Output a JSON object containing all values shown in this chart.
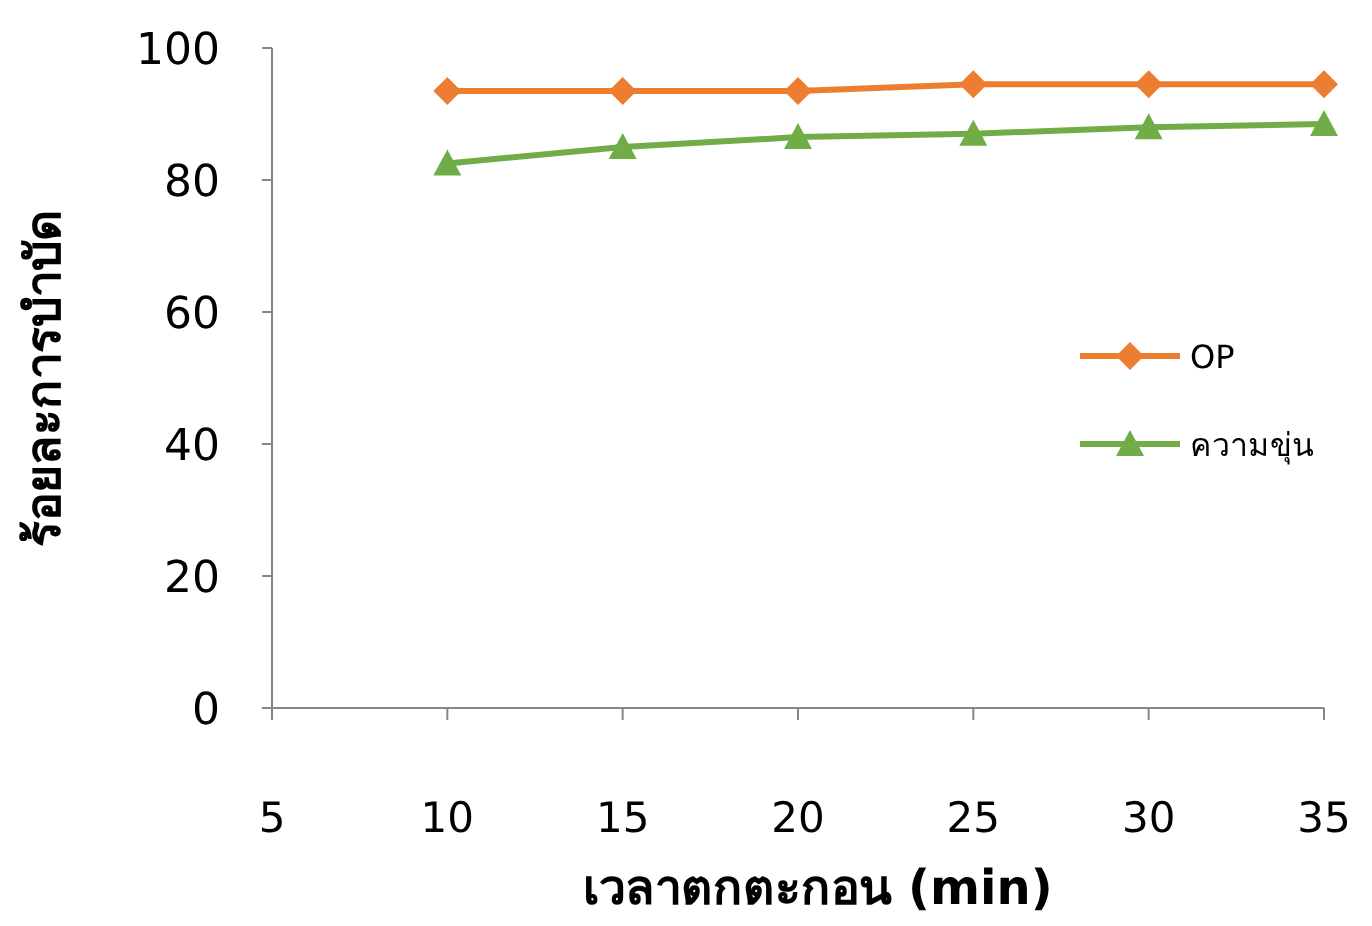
{
  "chart_data": {
    "type": "line",
    "xlabel": "เวลาตกตะกอน (min)",
    "ylabel": "ร้อยละการบำบัด",
    "x": [
      10,
      15,
      20,
      25,
      30,
      35
    ],
    "xlim": [
      5,
      35
    ],
    "xticks": [
      5,
      10,
      15,
      20,
      25,
      30,
      35
    ],
    "ylim": [
      0,
      100
    ],
    "yticks": [
      0,
      20,
      40,
      60,
      80,
      100
    ],
    "legend": "right",
    "grid": false,
    "line_style": "solid",
    "series": [
      {
        "name": "OP",
        "color": "#ed7d31",
        "marker": "diamond",
        "values": [
          93.5,
          93.5,
          93.5,
          94.5,
          94.5,
          94.5
        ]
      },
      {
        "name": "ความขุ่น",
        "color": "#70ad47",
        "marker": "triangle",
        "values": [
          82.5,
          85,
          86.5,
          87,
          88,
          88.5
        ]
      }
    ]
  }
}
